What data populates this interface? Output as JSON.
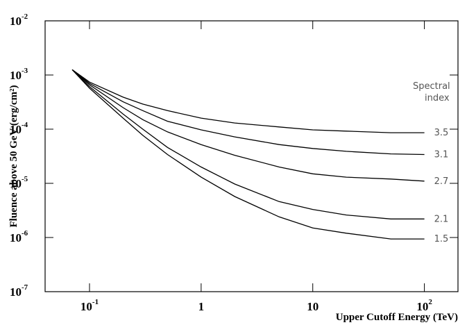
{
  "chart_data": {
    "type": "line",
    "x_label": "Upper Cutoff Energy (TeV)",
    "y_label": "Fluence above 50 GeV (erg/cm²)",
    "legend_title": [
      "Spectral",
      "index"
    ],
    "log_x": true,
    "log_y": true,
    "xlim": [
      0.04,
      200
    ],
    "ylim": [
      1e-07,
      0.01
    ],
    "xticks": [
      {
        "value": 0.1,
        "label": "10",
        "exponent": "-1"
      },
      1,
      10,
      {
        "value": 100,
        "label": "10",
        "exponent": "2"
      }
    ],
    "yticks": [
      {
        "value": 1e-07,
        "label": "10",
        "exponent": "-7"
      },
      {
        "value": 1e-06,
        "label": "10",
        "exponent": "-6"
      },
      {
        "value": 1e-05,
        "label": "10",
        "exponent": "-5"
      },
      {
        "value": 0.0001,
        "label": "10",
        "exponent": "-4"
      },
      {
        "value": 0.001,
        "label": "10",
        "exponent": "-3"
      },
      {
        "value": 0.01,
        "label": "10",
        "exponent": "-2"
      }
    ],
    "x": [
      0.07,
      0.1,
      0.2,
      0.3,
      0.5,
      1,
      2,
      5,
      10,
      20,
      50,
      100
    ],
    "series": [
      {
        "name": "3.5",
        "color": "#000000",
        "values": [
          0.00125,
          0.00074,
          0.00039,
          0.00029,
          0.00022,
          0.00016,
          0.00013,
          0.00011,
          9.7e-05,
          9.2e-05,
          8.6e-05,
          8.6e-05
        ]
      },
      {
        "name": "3.1",
        "color": "#000000",
        "values": [
          0.00125,
          0.0007,
          0.00032,
          0.00022,
          0.00014,
          9.7e-05,
          7.2e-05,
          5.2e-05,
          4.4e-05,
          3.9e-05,
          3.5e-05,
          3.4e-05
        ]
      },
      {
        "name": "2.7",
        "color": "#000000",
        "values": [
          0.00125,
          0.00066,
          0.00025,
          0.00015,
          8.9e-05,
          5.2e-05,
          3.3e-05,
          2e-05,
          1.5e-05,
          1.3e-05,
          1.2e-05,
          1.1e-05
        ]
      },
      {
        "name": "2.1",
        "color": "#000000",
        "values": [
          0.00125,
          0.00061,
          0.00019,
          0.0001,
          4.6e-05,
          2e-05,
          9.7e-06,
          4.6e-06,
          3.3e-06,
          2.6e-06,
          2.2e-06,
          2.2e-06
        ]
      },
      {
        "name": "1.5",
        "color": "#000000",
        "values": [
          0.00125,
          0.00057,
          0.00016,
          7.7e-05,
          3.4e-05,
          1.3e-05,
          5.7e-06,
          2.4e-06,
          1.5e-06,
          1.2e-06,
          9.4e-07,
          9.4e-07
        ]
      }
    ]
  }
}
